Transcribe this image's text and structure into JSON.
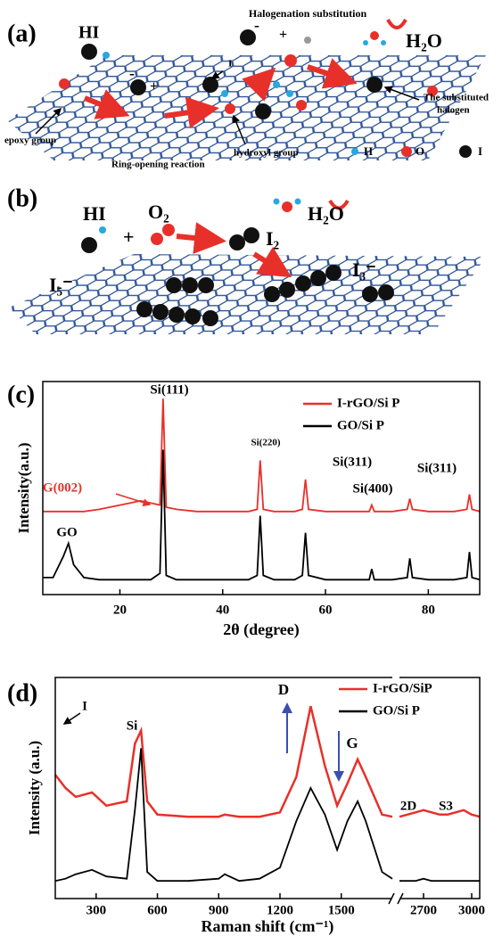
{
  "diagram_a": {
    "label": "(a)",
    "hi": "HI",
    "halogenation": "Halogenation substitution",
    "minus": "-",
    "plus": "+",
    "h2o": "H₂O",
    "iodine": "I",
    "substituted": [
      "The substituted",
      "halogen"
    ],
    "epoxy": "epoxy group",
    "ring": "Ring-opening reaction",
    "hydroxyl": "hydroxyl group",
    "minus2": "-",
    "plus2": "+",
    "legend": [
      "H",
      "O",
      "I"
    ]
  },
  "diagram_b": {
    "label": "(b)",
    "hi": "HI",
    "plus": "+",
    "o2": "O₂",
    "i2": "I₂",
    "h2o": "H₂O",
    "i5": "I₅⁻",
    "i3": "I₃⁻"
  },
  "chart_data": [
    {
      "type": "line",
      "panel_label": "(c)",
      "x_label": "2θ (degree)",
      "y_label": "Intensity(a.u.)",
      "xlim": [
        5,
        90
      ],
      "xticks": [
        20,
        40,
        60,
        80
      ],
      "ylim": [
        0,
        100
      ],
      "x": [
        5,
        7,
        9,
        10,
        11,
        13,
        16,
        20,
        22,
        24,
        26,
        27.8,
        28.4,
        29,
        31,
        35,
        40,
        45,
        46.7,
        47.3,
        47.9,
        50,
        54,
        55.5,
        56.1,
        56.7,
        60,
        65,
        68.5,
        69,
        69.5,
        73,
        75.9,
        76.4,
        76.9,
        80,
        85,
        87.5,
        88,
        88.5,
        90
      ],
      "series": [
        {
          "name": "I-rGO/Si P",
          "color": "#e8302a",
          "values": [
            39,
            39,
            39,
            39,
            39,
            39,
            40,
            42,
            43,
            44,
            43,
            42,
            92,
            41,
            40,
            39,
            39,
            39,
            40,
            63,
            40,
            39,
            39,
            40,
            54,
            40,
            39,
            39,
            39,
            42,
            39,
            39,
            40,
            45,
            40,
            39,
            39,
            40,
            47,
            40,
            39
          ]
        },
        {
          "name": "GO/Si P",
          "color": "#000000",
          "values": [
            8,
            8,
            18,
            24,
            14,
            8,
            7,
            7,
            7,
            7,
            7,
            10,
            68,
            9,
            7,
            7,
            7,
            7,
            9,
            37,
            9,
            7,
            7,
            9,
            29,
            9,
            7,
            7,
            7,
            12,
            7,
            7,
            8,
            17,
            8,
            7,
            7,
            8,
            20,
            8,
            7
          ]
        }
      ],
      "annotations": [
        "Si(111)",
        "Si(220)",
        "Si(311)",
        "Si(400)",
        "Si(311)",
        "G(002)",
        "GO"
      ]
    },
    {
      "type": "line",
      "panel_label": "(d)",
      "x_label": "Raman shift (cm⁻¹)",
      "y_label": "Intensity (a.u.)",
      "xlim": [
        100,
        3050
      ],
      "x_break": [
        1750,
        2550
      ],
      "xticks": [
        300,
        600,
        900,
        1200,
        1500,
        2700,
        3000
      ],
      "ylim": [
        0,
        100
      ],
      "x": [
        100,
        150,
        200,
        280,
        350,
        450,
        490,
        520,
        550,
        600,
        750,
        900,
        930,
        1000,
        1100,
        1200,
        1280,
        1350,
        1420,
        1480,
        1530,
        1580,
        1620,
        1700,
        1750,
        null,
        2550,
        2600,
        2650,
        2700,
        2750,
        2800,
        2850,
        2900,
        2950,
        3000,
        3050
      ],
      "series": [
        {
          "name": "I-rGO/SiP",
          "color": "#e8302a",
          "values": [
            56,
            50,
            46,
            48,
            42,
            44,
            70,
            76,
            44,
            38,
            37,
            37,
            38,
            37,
            37,
            39,
            55,
            87,
            60,
            42,
            52,
            63,
            55,
            38,
            37,
            null,
            37,
            38,
            39,
            40,
            39,
            38,
            38,
            39,
            40,
            38,
            37
          ]
        },
        {
          "name": "GO/Si P",
          "color": "#000000",
          "values": [
            8,
            9,
            11,
            13,
            10,
            9,
            40,
            68,
            12,
            8,
            8,
            9,
            11,
            8,
            9,
            14,
            35,
            50,
            38,
            22,
            35,
            44,
            35,
            12,
            9,
            null,
            8,
            8,
            8,
            9,
            8,
            8,
            8,
            8,
            8,
            8,
            8
          ]
        }
      ],
      "annotations": [
        "I",
        "Si",
        "D",
        "G",
        "2D",
        "S3"
      ]
    }
  ]
}
